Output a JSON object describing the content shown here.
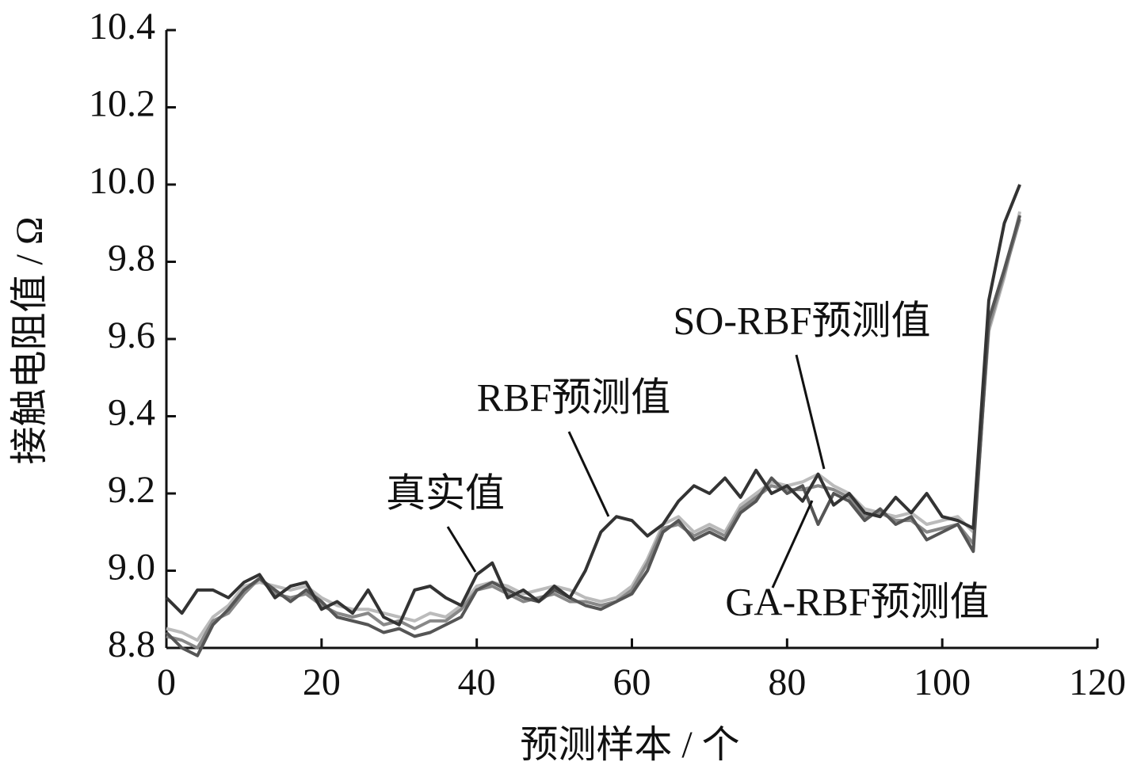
{
  "chart_data": {
    "type": "line",
    "x_label": "预测样本 / 个",
    "y_label": "接触电阻值 / Ω",
    "x": [
      0,
      2,
      4,
      6,
      8,
      10,
      12,
      14,
      16,
      18,
      20,
      22,
      24,
      26,
      28,
      30,
      32,
      34,
      36,
      38,
      40,
      42,
      44,
      46,
      48,
      50,
      52,
      54,
      56,
      58,
      60,
      62,
      64,
      66,
      68,
      70,
      72,
      74,
      76,
      78,
      80,
      82,
      84,
      86,
      88,
      90,
      92,
      94,
      96,
      98,
      100,
      102,
      104,
      106,
      108,
      110
    ],
    "series": [
      {
        "name": "真实值",
        "color": "#333333",
        "values": [
          8.93,
          8.89,
          8.95,
          8.95,
          8.93,
          8.97,
          8.99,
          8.93,
          8.96,
          8.97,
          8.9,
          8.92,
          8.89,
          8.95,
          8.88,
          8.86,
          8.95,
          8.96,
          8.93,
          8.91,
          8.99,
          9.02,
          8.93,
          8.95,
          8.92,
          8.96,
          8.93,
          9.0,
          9.1,
          9.14,
          9.13,
          9.09,
          9.12,
          9.18,
          9.22,
          9.2,
          9.24,
          9.19,
          9.26,
          9.2,
          9.22,
          9.18,
          9.25,
          9.17,
          9.2,
          9.15,
          9.14,
          9.19,
          9.15,
          9.2,
          9.14,
          9.13,
          9.11,
          9.7,
          9.9,
          10.0
        ]
      },
      {
        "name": "RBF预测值",
        "color": "#555555",
        "values": [
          8.84,
          8.8,
          8.78,
          8.86,
          8.9,
          8.95,
          8.98,
          8.95,
          8.92,
          8.95,
          8.92,
          8.88,
          8.87,
          8.86,
          8.84,
          8.85,
          8.83,
          8.84,
          8.86,
          8.88,
          8.95,
          8.97,
          8.95,
          8.93,
          8.92,
          8.95,
          8.93,
          8.91,
          8.9,
          8.92,
          8.94,
          9.0,
          9.1,
          9.13,
          9.08,
          9.1,
          9.08,
          9.15,
          9.18,
          9.24,
          9.2,
          9.22,
          9.12,
          9.2,
          9.18,
          9.13,
          9.16,
          9.12,
          9.14,
          9.08,
          9.1,
          9.12,
          9.05,
          9.65,
          9.78,
          9.92
        ]
      },
      {
        "name": "SO-RBF预测值",
        "color": "#bbbbbb",
        "values": [
          8.85,
          8.84,
          8.82,
          8.88,
          8.91,
          8.96,
          8.97,
          8.96,
          8.95,
          8.96,
          8.93,
          8.91,
          8.9,
          8.9,
          8.89,
          8.88,
          8.87,
          8.89,
          8.88,
          8.91,
          8.96,
          8.97,
          8.96,
          8.94,
          8.95,
          8.96,
          8.95,
          8.93,
          8.92,
          8.93,
          8.96,
          9.03,
          9.12,
          9.14,
          9.1,
          9.12,
          9.1,
          9.17,
          9.2,
          9.23,
          9.22,
          9.23,
          9.25,
          9.22,
          9.2,
          9.16,
          9.15,
          9.14,
          9.15,
          9.12,
          9.13,
          9.14,
          9.1,
          9.62,
          9.76,
          9.93
        ]
      },
      {
        "name": "GA-RBF预测值",
        "color": "#888888",
        "values": [
          8.83,
          8.82,
          8.8,
          8.87,
          8.89,
          8.94,
          8.98,
          8.94,
          8.93,
          8.94,
          8.91,
          8.89,
          8.88,
          8.89,
          8.86,
          8.87,
          8.85,
          8.87,
          8.87,
          8.9,
          8.95,
          8.96,
          8.94,
          8.92,
          8.93,
          8.94,
          8.92,
          8.92,
          8.91,
          8.92,
          8.95,
          9.02,
          9.11,
          9.12,
          9.09,
          9.11,
          9.09,
          9.16,
          9.19,
          9.22,
          9.21,
          9.21,
          9.22,
          9.21,
          9.19,
          9.14,
          9.15,
          9.13,
          9.13,
          9.1,
          9.11,
          9.12,
          9.07,
          9.63,
          9.77,
          9.91
        ]
      }
    ],
    "xlim": [
      0,
      120
    ],
    "xticks": [
      0,
      20,
      40,
      60,
      80,
      100,
      120
    ],
    "ylim": [
      8.8,
      10.4
    ],
    "yticks": [
      8.8,
      {
        "value": 9.0,
        "label": "9.0"
      },
      9.2,
      9.4,
      9.6,
      9.8,
      {
        "value": 10.0,
        "label": "10.0"
      },
      10.2,
      10.4
    ],
    "grid": false
  }
}
